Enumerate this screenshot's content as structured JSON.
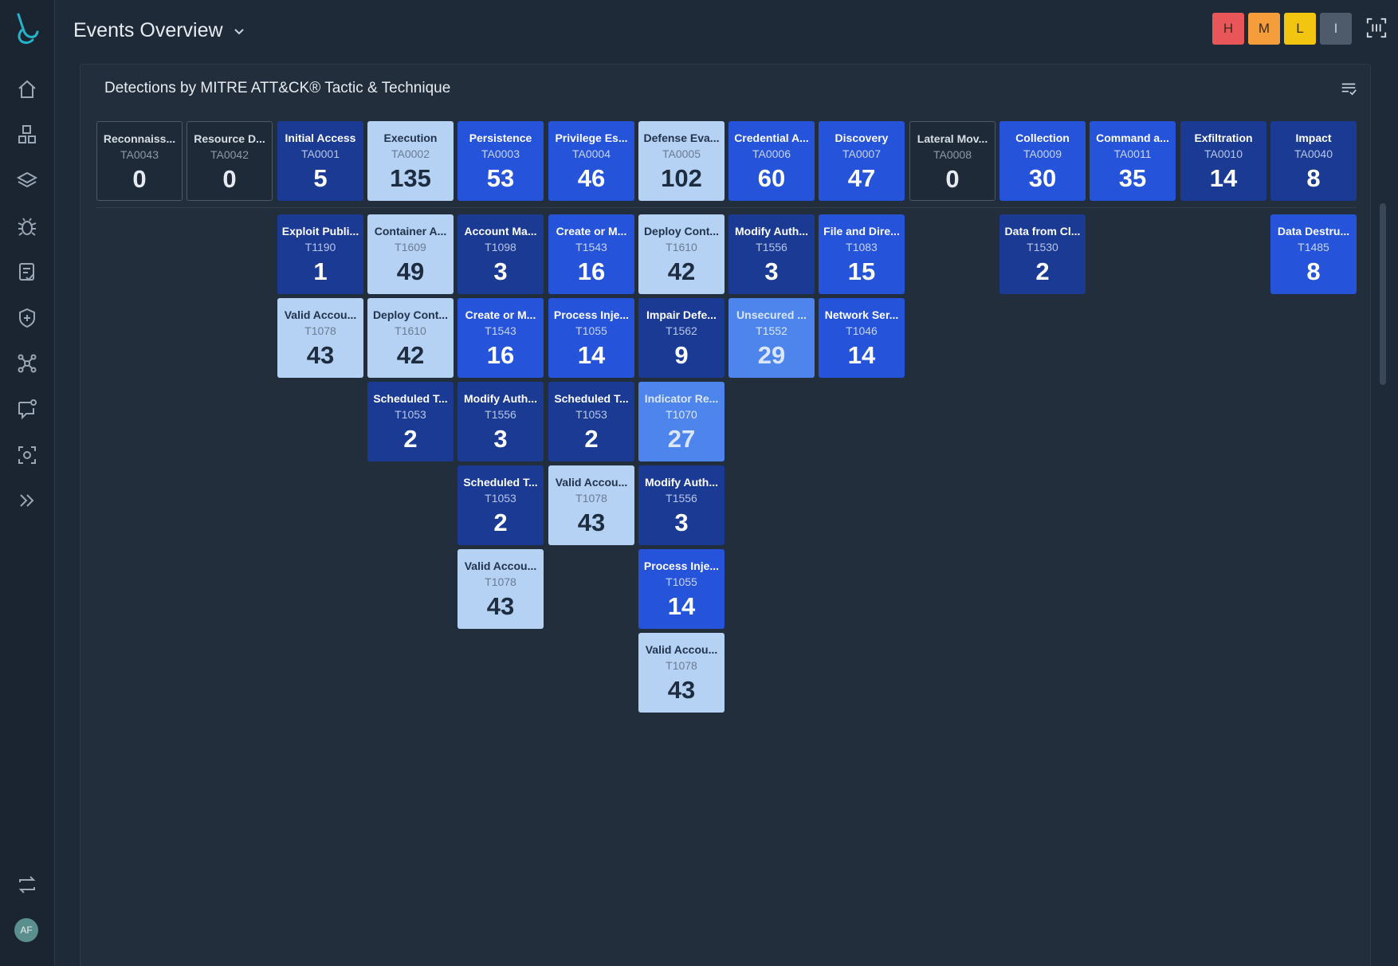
{
  "header": {
    "title": "Events Overview"
  },
  "severity_filters": [
    {
      "label": "H",
      "color": "#e8565a"
    },
    {
      "label": "M",
      "color": "#f59d3a"
    },
    {
      "label": "L",
      "color": "#f2c511"
    },
    {
      "label": "I",
      "color": "#4e5b6a"
    }
  ],
  "sidebar": {
    "items": [
      "home-icon",
      "dashboard-icon",
      "layers-icon",
      "bug-icon",
      "checklist-icon",
      "shield-icon",
      "network-icon",
      "chat-icon",
      "scan-icon",
      "expand-icon"
    ],
    "bottom": [
      "sync-icon"
    ],
    "avatar_initials": "AF"
  },
  "panel": {
    "title": "Detections by MITRE ATT&CK® Tactic & Technique"
  },
  "tactics": [
    {
      "name": "Reconnaiss...",
      "id": "TA0043",
      "count": 0,
      "level": 0,
      "techniques": []
    },
    {
      "name": "Resource D...",
      "id": "TA0042",
      "count": 0,
      "level": 0,
      "techniques": []
    },
    {
      "name": "Initial Access",
      "id": "TA0001",
      "count": 5,
      "level": 1,
      "techniques": [
        {
          "name": "Exploit Publi...",
          "id": "T1190",
          "count": 1,
          "level": 1
        },
        {
          "name": "Valid Accou...",
          "id": "T1078",
          "count": 43,
          "level": 4
        }
      ]
    },
    {
      "name": "Execution",
      "id": "TA0002",
      "count": 135,
      "level": 4,
      "techniques": [
        {
          "name": "Container A...",
          "id": "T1609",
          "count": 49,
          "level": 4
        },
        {
          "name": "Deploy Cont...",
          "id": "T1610",
          "count": 42,
          "level": 4
        },
        {
          "name": "Scheduled T...",
          "id": "T1053",
          "count": 2,
          "level": 1
        }
      ]
    },
    {
      "name": "Persistence",
      "id": "TA0003",
      "count": 53,
      "level": 2,
      "techniques": [
        {
          "name": "Account Ma...",
          "id": "T1098",
          "count": 3,
          "level": 1
        },
        {
          "name": "Create or M...",
          "id": "T1543",
          "count": 16,
          "level": 2
        },
        {
          "name": "Modify Auth...",
          "id": "T1556",
          "count": 3,
          "level": 1
        },
        {
          "name": "Scheduled T...",
          "id": "T1053",
          "count": 2,
          "level": 1
        },
        {
          "name": "Valid Accou...",
          "id": "T1078",
          "count": 43,
          "level": 4
        }
      ]
    },
    {
      "name": "Privilege Es...",
      "id": "TA0004",
      "count": 46,
      "level": 2,
      "techniques": [
        {
          "name": "Create or M...",
          "id": "T1543",
          "count": 16,
          "level": 2
        },
        {
          "name": "Process Inje...",
          "id": "T1055",
          "count": 14,
          "level": 2
        },
        {
          "name": "Scheduled T...",
          "id": "T1053",
          "count": 2,
          "level": 1
        },
        {
          "name": "Valid Accou...",
          "id": "T1078",
          "count": 43,
          "level": 4
        }
      ]
    },
    {
      "name": "Defense Eva...",
      "id": "TA0005",
      "count": 102,
      "level": 4,
      "techniques": [
        {
          "name": "Deploy Cont...",
          "id": "T1610",
          "count": 42,
          "level": 4
        },
        {
          "name": "Impair Defe...",
          "id": "T1562",
          "count": 9,
          "level": 1
        },
        {
          "name": "Indicator Re...",
          "id": "T1070",
          "count": 27,
          "level": 3
        },
        {
          "name": "Modify Auth...",
          "id": "T1556",
          "count": 3,
          "level": 1
        },
        {
          "name": "Process Inje...",
          "id": "T1055",
          "count": 14,
          "level": 2
        },
        {
          "name": "Valid Accou...",
          "id": "T1078",
          "count": 43,
          "level": 4
        }
      ]
    },
    {
      "name": "Credential A...",
      "id": "TA0006",
      "count": 60,
      "level": 2,
      "techniques": [
        {
          "name": "Modify Auth...",
          "id": "T1556",
          "count": 3,
          "level": 1
        },
        {
          "name": "Unsecured ...",
          "id": "T1552",
          "count": 29,
          "level": 3
        }
      ]
    },
    {
      "name": "Discovery",
      "id": "TA0007",
      "count": 47,
      "level": 2,
      "techniques": [
        {
          "name": "File and Dire...",
          "id": "T1083",
          "count": 15,
          "level": 2
        },
        {
          "name": "Network Ser...",
          "id": "T1046",
          "count": 14,
          "level": 2
        }
      ]
    },
    {
      "name": "Lateral Mov...",
      "id": "TA0008",
      "count": 0,
      "level": 0,
      "techniques": []
    },
    {
      "name": "Collection",
      "id": "TA0009",
      "count": 30,
      "level": 2,
      "techniques": [
        {
          "name": "Data from Cl...",
          "id": "T1530",
          "count": 2,
          "level": 1
        }
      ]
    },
    {
      "name": "Command a...",
      "id": "TA0011",
      "count": 35,
      "level": 2,
      "techniques": []
    },
    {
      "name": "Exfiltration",
      "id": "TA0010",
      "count": 14,
      "level": 1,
      "techniques": []
    },
    {
      "name": "Impact",
      "id": "TA0040",
      "count": 8,
      "level": 1,
      "techniques": [
        {
          "name": "Data Destru...",
          "id": "T1485",
          "count": 8,
          "level": 2
        }
      ]
    }
  ]
}
